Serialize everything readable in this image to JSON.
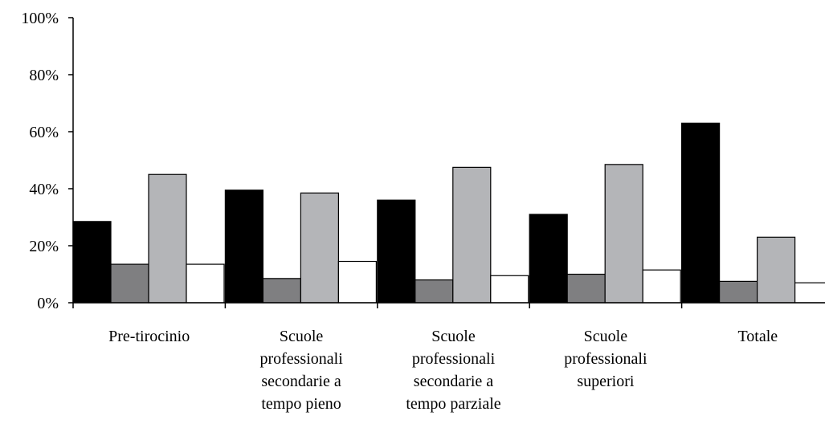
{
  "chart_data": {
    "type": "bar",
    "title": "",
    "xlabel": "",
    "ylabel": "",
    "ylim": [
      0,
      100
    ],
    "yticks": [
      "0%",
      "20%",
      "40%",
      "60%",
      "80%",
      "100%"
    ],
    "grid": false,
    "legend": "none",
    "categories": [
      [
        "Pre-tirocinio"
      ],
      [
        "Scuole",
        "professionali",
        "secondarie a",
        "tempo pieno"
      ],
      [
        "Scuole",
        "professionali",
        "secondarie a",
        "tempo parziale"
      ],
      [
        "Scuole",
        "professionali",
        "superiori"
      ],
      [
        "Totale"
      ]
    ],
    "series": [
      {
        "color": "#000000",
        "values": [
          28.5,
          39.5,
          36,
          31,
          63
        ]
      },
      {
        "color": "#7f7f81",
        "values": [
          13.5,
          8.5,
          8,
          10,
          7.5
        ]
      },
      {
        "color": "#b4b5b8",
        "values": [
          45,
          38.5,
          47.5,
          48.5,
          23
        ]
      },
      {
        "color": "#ffffff",
        "values": [
          13.5,
          14.5,
          9.5,
          11.5,
          7
        ]
      }
    ]
  }
}
